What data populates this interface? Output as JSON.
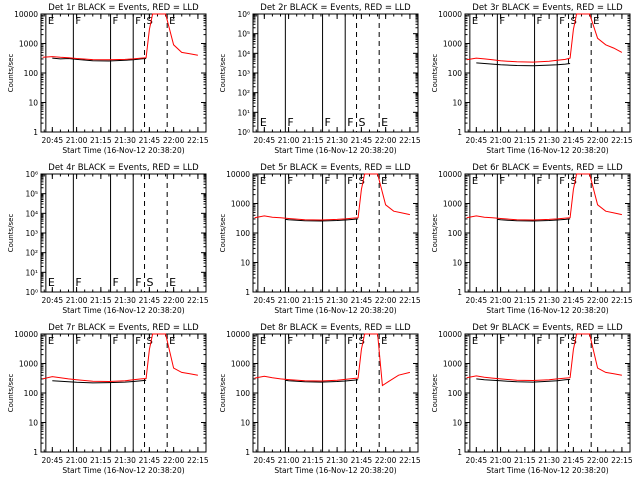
{
  "chart_data": [
    {
      "type": "line",
      "title": "Det 1r BLACK = Events, RED = LLD",
      "ylabel": "Counts/sec",
      "xlabel": "Start Time (16-Nov-12 20:38:20)",
      "yscale": "log",
      "ylim": [
        1,
        10000
      ],
      "ytick_labels": [
        "1",
        "10",
        "100",
        "1000",
        "10000"
      ],
      "xtick_labels": [
        "20:45",
        "21:00",
        "21:15",
        "21:30",
        "21:45",
        "22:00",
        "22:15"
      ],
      "markers": [
        {
          "label": "E",
          "time": "20:41",
          "style": "solid"
        },
        {
          "label": "F",
          "time": "20:58",
          "style": "solid"
        },
        {
          "label": "F",
          "time": "21:21",
          "style": "solid"
        },
        {
          "label": "F",
          "time": "21:35",
          "style": "solid"
        },
        {
          "label": "S",
          "time": "21:42",
          "style": "dashed"
        },
        {
          "label": "E",
          "time": "21:56",
          "style": "dashed"
        }
      ],
      "series": [
        {
          "name": "Events",
          "color": "#000000",
          "x": [
            "20:45",
            "20:50",
            "20:55",
            "21:00",
            "21:10",
            "21:20",
            "21:30",
            "21:35",
            "21:40",
            "21:43"
          ],
          "values": [
            320,
            300,
            310,
            290,
            260,
            255,
            270,
            280,
            300,
            310
          ]
        },
        {
          "name": "LLD",
          "color": "#ff0000",
          "x": [
            "20:39",
            "20:45",
            "20:50",
            "20:55",
            "21:00",
            "21:10",
            "21:20",
            "21:30",
            "21:35",
            "21:40",
            "21:43",
            "21:45",
            "21:47",
            "21:55",
            "22:00",
            "22:05",
            "22:10",
            "22:15"
          ],
          "values": [
            340,
            360,
            340,
            330,
            310,
            285,
            280,
            290,
            300,
            320,
            330,
            3000,
            10000,
            10000,
            900,
            500,
            450,
            400
          ]
        }
      ]
    },
    {
      "type": "line",
      "title": "Det 2r BLACK = Events, RED = LLD",
      "ylabel": "Counts/sec",
      "xlabel": "Start Time (16-Nov-12 20:38:20)",
      "yscale": "log",
      "ylim": [
        1,
        1000000
      ],
      "ytick_labels": [
        "10⁰",
        "10¹",
        "10²",
        "10³",
        "10⁴",
        "10⁵",
        "10⁶"
      ],
      "xtick_labels": [
        "20:45",
        "21:00",
        "21:15",
        "21:30",
        "21:45",
        "22:00",
        "22:15"
      ],
      "markers": [
        {
          "label": "E",
          "time": "20:41",
          "style": "solid"
        },
        {
          "label": "F",
          "time": "20:58",
          "style": "solid"
        },
        {
          "label": "F",
          "time": "21:21",
          "style": "solid"
        },
        {
          "label": "F",
          "time": "21:35",
          "style": "solid"
        },
        {
          "label": "S",
          "time": "21:42",
          "style": "dashed"
        },
        {
          "label": "E",
          "time": "21:56",
          "style": "dashed"
        }
      ],
      "series": []
    },
    {
      "type": "line",
      "title": "Det 3r BLACK = Events, RED = LLD",
      "ylabel": "Counts/sec",
      "xlabel": "Start Time (16-Nov-12 20:38:20)",
      "yscale": "log",
      "ylim": [
        1,
        10000
      ],
      "ytick_labels": [
        "1",
        "10",
        "100",
        "1000",
        "10000"
      ],
      "xtick_labels": [
        "20:45",
        "21:00",
        "21:15",
        "21:30",
        "21:45",
        "22:00",
        "22:15"
      ],
      "markers": [
        {
          "label": "E",
          "time": "20:41",
          "style": "solid"
        },
        {
          "label": "F",
          "time": "20:58",
          "style": "solid"
        },
        {
          "label": "F",
          "time": "21:21",
          "style": "solid"
        },
        {
          "label": "F",
          "time": "21:35",
          "style": "solid"
        },
        {
          "label": "S",
          "time": "21:42",
          "style": "dashed"
        },
        {
          "label": "E",
          "time": "21:56",
          "style": "dashed"
        }
      ],
      "series": [
        {
          "name": "Events",
          "color": "#000000",
          "x": [
            "20:45",
            "20:50",
            "20:55",
            "21:00",
            "21:10",
            "21:20",
            "21:30",
            "21:35",
            "21:40",
            "21:43"
          ],
          "values": [
            220,
            210,
            200,
            190,
            180,
            175,
            185,
            190,
            200,
            210
          ]
        },
        {
          "name": "LLD",
          "color": "#ff0000",
          "x": [
            "20:39",
            "20:45",
            "20:50",
            "20:55",
            "21:00",
            "21:10",
            "21:20",
            "21:30",
            "21:35",
            "21:40",
            "21:43",
            "21:45",
            "21:47",
            "21:55",
            "22:00",
            "22:05",
            "22:10",
            "22:15"
          ],
          "values": [
            280,
            320,
            300,
            280,
            260,
            240,
            235,
            250,
            270,
            290,
            320,
            3000,
            10000,
            10000,
            1500,
            900,
            700,
            500
          ]
        }
      ]
    },
    {
      "type": "line",
      "title": "Det 4r BLACK = Events, RED = LLD",
      "ylabel": "Counts/sec",
      "xlabel": "Start Time (16-Nov-12 20:38:20)",
      "yscale": "log",
      "ylim": [
        1,
        1000000
      ],
      "ytick_labels": [
        "10⁰",
        "10¹",
        "10²",
        "10³",
        "10⁴",
        "10⁵",
        "10⁶"
      ],
      "xtick_labels": [
        "20:45",
        "21:00",
        "21:15",
        "21:30",
        "21:45",
        "22:00",
        "22:15"
      ],
      "markers": [
        {
          "label": "E",
          "time": "20:41",
          "style": "solid"
        },
        {
          "label": "F",
          "time": "20:58",
          "style": "solid"
        },
        {
          "label": "F",
          "time": "21:21",
          "style": "solid"
        },
        {
          "label": "F",
          "time": "21:35",
          "style": "solid"
        },
        {
          "label": "S",
          "time": "21:42",
          "style": "dashed"
        },
        {
          "label": "E",
          "time": "21:56",
          "style": "dashed"
        }
      ],
      "series": []
    },
    {
      "type": "line",
      "title": "Det 5r BLACK = Events, RED = LLD",
      "ylabel": "Counts/sec",
      "xlabel": "Start Time (16-Nov-12 20:38:20)",
      "yscale": "log",
      "ylim": [
        1,
        10000
      ],
      "ytick_labels": [
        "1",
        "10",
        "100",
        "1000",
        "10000"
      ],
      "xtick_labels": [
        "20:45",
        "21:00",
        "21:15",
        "21:30",
        "21:45",
        "22:00",
        "22:15"
      ],
      "markers": [
        {
          "label": "E",
          "time": "20:41",
          "style": "solid"
        },
        {
          "label": "F",
          "time": "20:58",
          "style": "solid"
        },
        {
          "label": "F",
          "time": "21:21",
          "style": "solid"
        },
        {
          "label": "F",
          "time": "21:35",
          "style": "solid"
        },
        {
          "label": "S",
          "time": "21:42",
          "style": "dashed"
        },
        {
          "label": "E",
          "time": "21:56",
          "style": "dashed"
        }
      ],
      "series": [
        {
          "name": "Events",
          "color": "#000000",
          "x": [
            "20:58",
            "21:00",
            "21:10",
            "21:20",
            "21:30",
            "21:35",
            "21:40",
            "21:43"
          ],
          "values": [
            290,
            280,
            260,
            255,
            265,
            275,
            290,
            300
          ]
        },
        {
          "name": "LLD",
          "color": "#ff0000",
          "x": [
            "20:39",
            "20:45",
            "20:50",
            "20:55",
            "21:00",
            "21:10",
            "21:20",
            "21:30",
            "21:35",
            "21:40",
            "21:43",
            "21:45",
            "21:47",
            "21:55",
            "22:00",
            "22:05",
            "22:10",
            "22:15"
          ],
          "values": [
            330,
            380,
            340,
            330,
            310,
            280,
            275,
            290,
            300,
            320,
            330,
            3000,
            10000,
            10000,
            900,
            550,
            480,
            420
          ]
        }
      ]
    },
    {
      "type": "line",
      "title": "Det 6r BLACK = Events, RED = LLD",
      "ylabel": "Counts/sec",
      "xlabel": "Start Time (16-Nov-12 20:38:20)",
      "yscale": "log",
      "ylim": [
        1,
        10000
      ],
      "ytick_labels": [
        "1",
        "10",
        "100",
        "1000",
        "10000"
      ],
      "xtick_labels": [
        "20:45",
        "21:00",
        "21:15",
        "21:30",
        "21:45",
        "22:00",
        "22:15"
      ],
      "markers": [
        {
          "label": "E",
          "time": "20:41",
          "style": "solid"
        },
        {
          "label": "F",
          "time": "20:58",
          "style": "solid"
        },
        {
          "label": "F",
          "time": "21:21",
          "style": "solid"
        },
        {
          "label": "F",
          "time": "21:35",
          "style": "solid"
        },
        {
          "label": "S",
          "time": "21:42",
          "style": "dashed"
        },
        {
          "label": "E",
          "time": "21:56",
          "style": "dashed"
        }
      ],
      "series": [
        {
          "name": "Events",
          "color": "#000000",
          "x": [
            "20:58",
            "21:00",
            "21:10",
            "21:20",
            "21:30",
            "21:35",
            "21:40",
            "21:43"
          ],
          "values": [
            290,
            280,
            260,
            255,
            265,
            275,
            290,
            300
          ]
        },
        {
          "name": "LLD",
          "color": "#ff0000",
          "x": [
            "20:39",
            "20:45",
            "20:50",
            "20:55",
            "21:00",
            "21:10",
            "21:20",
            "21:30",
            "21:35",
            "21:40",
            "21:43",
            "21:45",
            "21:47",
            "21:55",
            "22:00",
            "22:05",
            "22:10",
            "22:15"
          ],
          "values": [
            330,
            380,
            340,
            330,
            310,
            280,
            275,
            290,
            300,
            320,
            330,
            3000,
            10000,
            10000,
            900,
            550,
            480,
            420
          ]
        }
      ]
    },
    {
      "type": "line",
      "title": "Det 7r BLACK = Events, RED = LLD",
      "ylabel": "Counts/sec",
      "xlabel": "Start Time (16-Nov-12 20:38:20)",
      "yscale": "log",
      "ylim": [
        1,
        10000
      ],
      "ytick_labels": [
        "1",
        "10",
        "100",
        "1000",
        "10000"
      ],
      "xtick_labels": [
        "20:45",
        "21:00",
        "21:15",
        "21:30",
        "21:45",
        "22:00",
        "22:15"
      ],
      "markers": [
        {
          "label": "E",
          "time": "20:41",
          "style": "solid"
        },
        {
          "label": "F",
          "time": "20:58",
          "style": "solid"
        },
        {
          "label": "F",
          "time": "21:21",
          "style": "solid"
        },
        {
          "label": "F",
          "time": "21:35",
          "style": "solid"
        },
        {
          "label": "S",
          "time": "21:42",
          "style": "dashed"
        },
        {
          "label": "E",
          "time": "21:56",
          "style": "dashed"
        }
      ],
      "series": [
        {
          "name": "Events",
          "color": "#000000",
          "x": [
            "20:45",
            "20:50",
            "20:55",
            "21:00",
            "21:10",
            "21:20",
            "21:30",
            "21:35",
            "21:40",
            "21:43"
          ],
          "values": [
            260,
            250,
            240,
            230,
            220,
            225,
            235,
            245,
            260,
            270
          ]
        },
        {
          "name": "LLD",
          "color": "#ff0000",
          "x": [
            "20:39",
            "20:45",
            "20:50",
            "20:55",
            "21:00",
            "21:10",
            "21:20",
            "21:30",
            "21:35",
            "21:40",
            "21:43",
            "21:45",
            "21:47",
            "21:55",
            "22:00",
            "22:05",
            "22:10",
            "22:15"
          ],
          "values": [
            300,
            360,
            330,
            300,
            280,
            250,
            245,
            260,
            280,
            300,
            310,
            3000,
            10000,
            10000,
            700,
            500,
            450,
            400
          ]
        }
      ]
    },
    {
      "type": "line",
      "title": "Det 8r BLACK = Events, RED = LLD",
      "ylabel": "Counts/sec",
      "xlabel": "Start Time (16-Nov-12 20:38:20)",
      "yscale": "log",
      "ylim": [
        1,
        10000
      ],
      "ytick_labels": [
        "1",
        "10",
        "100",
        "1000",
        "10000"
      ],
      "xtick_labels": [
        "20:45",
        "21:00",
        "21:15",
        "21:30",
        "21:45",
        "22:00",
        "22:15"
      ],
      "markers": [
        {
          "label": "E",
          "time": "20:41",
          "style": "solid"
        },
        {
          "label": "F",
          "time": "20:58",
          "style": "solid"
        },
        {
          "label": "F",
          "time": "21:21",
          "style": "solid"
        },
        {
          "label": "F",
          "time": "21:35",
          "style": "solid"
        },
        {
          "label": "S",
          "time": "21:42",
          "style": "dashed"
        },
        {
          "label": "E",
          "time": "21:56",
          "style": "dashed"
        }
      ],
      "series": [
        {
          "name": "Events",
          "color": "#000000",
          "x": [
            "20:58",
            "21:00",
            "21:10",
            "21:20",
            "21:30",
            "21:35",
            "21:40",
            "21:43"
          ],
          "values": [
            270,
            260,
            240,
            235,
            245,
            255,
            270,
            280
          ]
        },
        {
          "name": "LLD",
          "color": "#ff0000",
          "x": [
            "20:39",
            "20:45",
            "20:50",
            "20:55",
            "21:00",
            "21:10",
            "21:20",
            "21:30",
            "21:35",
            "21:40",
            "21:43",
            "21:45",
            "21:47",
            "21:55",
            "21:58",
            "22:02",
            "22:08",
            "22:15"
          ],
          "values": [
            320,
            370,
            330,
            300,
            285,
            260,
            255,
            270,
            290,
            310,
            320,
            3000,
            10000,
            10000,
            180,
            250,
            400,
            500
          ]
        }
      ]
    },
    {
      "type": "line",
      "title": "Det 9r BLACK = Events, RED = LLD",
      "ylabel": "Counts/sec",
      "xlabel": "Start Time (16-Nov-12 20:38:20)",
      "yscale": "log",
      "ylim": [
        1,
        10000
      ],
      "ytick_labels": [
        "1",
        "10",
        "100",
        "1000",
        "10000"
      ],
      "xtick_labels": [
        "20:45",
        "21:00",
        "21:15",
        "21:30",
        "21:45",
        "22:00",
        "22:15"
      ],
      "markers": [
        {
          "label": "E",
          "time": "20:41",
          "style": "solid"
        },
        {
          "label": "F",
          "time": "20:58",
          "style": "solid"
        },
        {
          "label": "F",
          "time": "21:21",
          "style": "solid"
        },
        {
          "label": "F",
          "time": "21:35",
          "style": "solid"
        },
        {
          "label": "S",
          "time": "21:42",
          "style": "dashed"
        },
        {
          "label": "E",
          "time": "21:56",
          "style": "dashed"
        }
      ],
      "series": [
        {
          "name": "Events",
          "color": "#000000",
          "x": [
            "20:45",
            "20:50",
            "20:55",
            "21:00",
            "21:10",
            "21:20",
            "21:30",
            "21:35",
            "21:40",
            "21:43"
          ],
          "values": [
            300,
            280,
            270,
            260,
            240,
            235,
            250,
            260,
            280,
            290
          ]
        },
        {
          "name": "LLD",
          "color": "#ff0000",
          "x": [
            "20:39",
            "20:45",
            "20:50",
            "20:55",
            "21:00",
            "21:10",
            "21:20",
            "21:30",
            "21:35",
            "21:40",
            "21:43",
            "21:45",
            "21:47",
            "21:55",
            "22:00",
            "22:05",
            "22:10",
            "22:15"
          ],
          "values": [
            330,
            380,
            340,
            320,
            300,
            270,
            265,
            280,
            300,
            320,
            330,
            3000,
            10000,
            10000,
            700,
            500,
            450,
            400
          ]
        }
      ]
    }
  ]
}
